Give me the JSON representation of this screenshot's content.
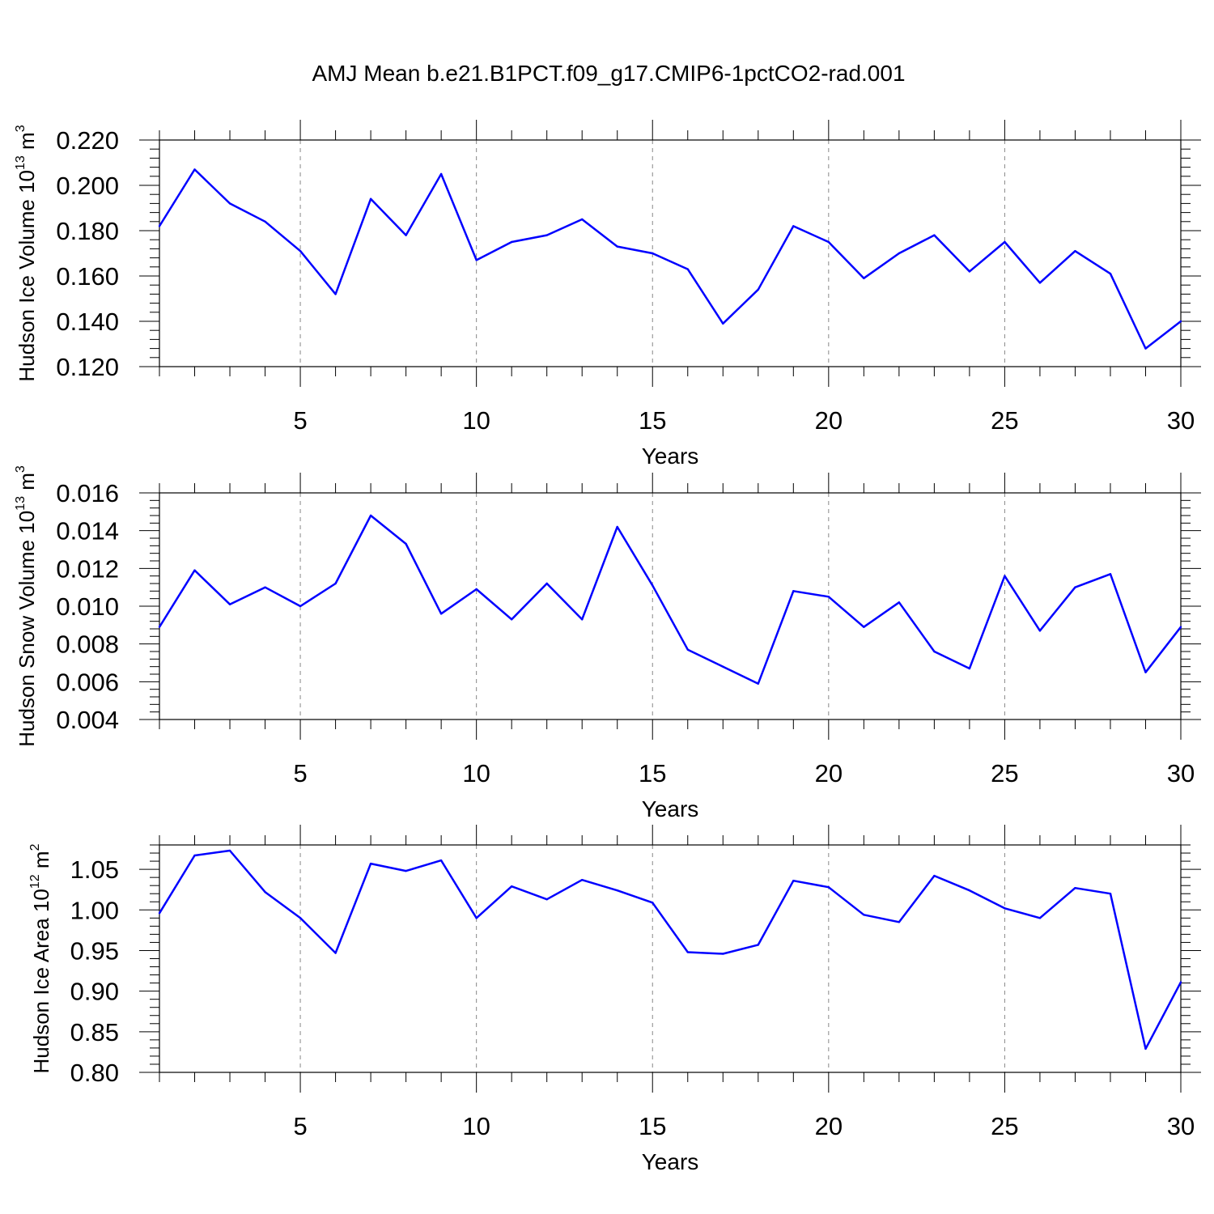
{
  "title": "AMJ Mean b.e21.B1PCT.f09_g17.CMIP6-1pctCO2-rad.001",
  "style": {
    "line_color": "#0000ff",
    "grid_color": "#888888",
    "axis_color": "#000000"
  },
  "chart_data": [
    {
      "type": "line",
      "ylabel": {
        "base": "Hudson Ice Volume 10",
        "exponent": "13",
        "unit": " m",
        "unit_exponent": "3"
      },
      "xlabel": "Years",
      "xlim": [
        1,
        30
      ],
      "ylim": [
        0.12,
        0.22
      ],
      "xticks": [
        "5",
        "10",
        "15",
        "20",
        "25",
        "30"
      ],
      "yticks": [
        "0.120",
        "0.140",
        "0.160",
        "0.180",
        "0.200",
        "0.220"
      ],
      "series": [
        {
          "name": "Hudson Ice Volume",
          "x": [
            1,
            2,
            3,
            4,
            5,
            6,
            7,
            8,
            9,
            10,
            11,
            12,
            13,
            14,
            15,
            16,
            17,
            18,
            19,
            20,
            21,
            22,
            23,
            24,
            25,
            26,
            27,
            28,
            29,
            30
          ],
          "values": [
            0.182,
            0.207,
            0.192,
            0.184,
            0.171,
            0.152,
            0.194,
            0.178,
            0.205,
            0.167,
            0.175,
            0.178,
            0.185,
            0.173,
            0.17,
            0.163,
            0.139,
            0.154,
            0.182,
            0.175,
            0.159,
            0.17,
            0.178,
            0.162,
            0.175,
            0.157,
            0.171,
            0.161,
            0.128,
            0.14
          ]
        }
      ]
    },
    {
      "type": "line",
      "ylabel": {
        "base": "Hudson Snow Volume 10",
        "exponent": "13",
        "unit": " m",
        "unit_exponent": "3"
      },
      "xlabel": "Years",
      "xlim": [
        1,
        30
      ],
      "ylim": [
        0.004,
        0.016
      ],
      "xticks": [
        "5",
        "10",
        "15",
        "20",
        "25",
        "30"
      ],
      "yticks": [
        "0.004",
        "0.006",
        "0.008",
        "0.010",
        "0.012",
        "0.014",
        "0.016"
      ],
      "series": [
        {
          "name": "Hudson Snow Volume",
          "x": [
            1,
            2,
            3,
            4,
            5,
            6,
            7,
            8,
            9,
            10,
            11,
            12,
            13,
            14,
            15,
            16,
            17,
            18,
            19,
            20,
            21,
            22,
            23,
            24,
            25,
            26,
            27,
            28,
            29,
            30
          ],
          "values": [
            0.0089,
            0.0119,
            0.0101,
            0.011,
            0.01,
            0.0112,
            0.0148,
            0.0133,
            0.0096,
            0.0109,
            0.0093,
            0.0112,
            0.0093,
            0.0142,
            0.0111,
            0.0077,
            0.0068,
            0.0059,
            0.0108,
            0.0105,
            0.0089,
            0.0102,
            0.0076,
            0.0067,
            0.0116,
            0.0087,
            0.011,
            0.0117,
            0.0065,
            0.0089
          ]
        }
      ]
    },
    {
      "type": "line",
      "ylabel": {
        "base": "Hudson Ice Area 10",
        "exponent": "12",
        "unit": " m",
        "unit_exponent": "2"
      },
      "xlabel": "Years",
      "xlim": [
        1,
        30
      ],
      "ylim": [
        0.8,
        1.08
      ],
      "xticks": [
        "5",
        "10",
        "15",
        "20",
        "25",
        "30"
      ],
      "yticks": [
        "0.80",
        "0.85",
        "0.90",
        "0.95",
        "1.00",
        "1.05"
      ],
      "series": [
        {
          "name": "Hudson Ice Area",
          "x": [
            1,
            2,
            3,
            4,
            5,
            6,
            7,
            8,
            9,
            10,
            11,
            12,
            13,
            14,
            15,
            16,
            17,
            18,
            19,
            20,
            21,
            22,
            23,
            24,
            25,
            26,
            27,
            28,
            29,
            30
          ],
          "values": [
            0.996,
            1.067,
            1.073,
            1.022,
            0.99,
            0.947,
            1.057,
            1.048,
            1.061,
            0.99,
            1.029,
            1.013,
            1.037,
            1.024,
            1.009,
            0.948,
            0.946,
            0.957,
            1.036,
            1.028,
            0.994,
            0.985,
            1.042,
            1.024,
            1.002,
            0.99,
            1.027,
            1.02,
            0.829,
            0.911
          ]
        }
      ]
    }
  ]
}
